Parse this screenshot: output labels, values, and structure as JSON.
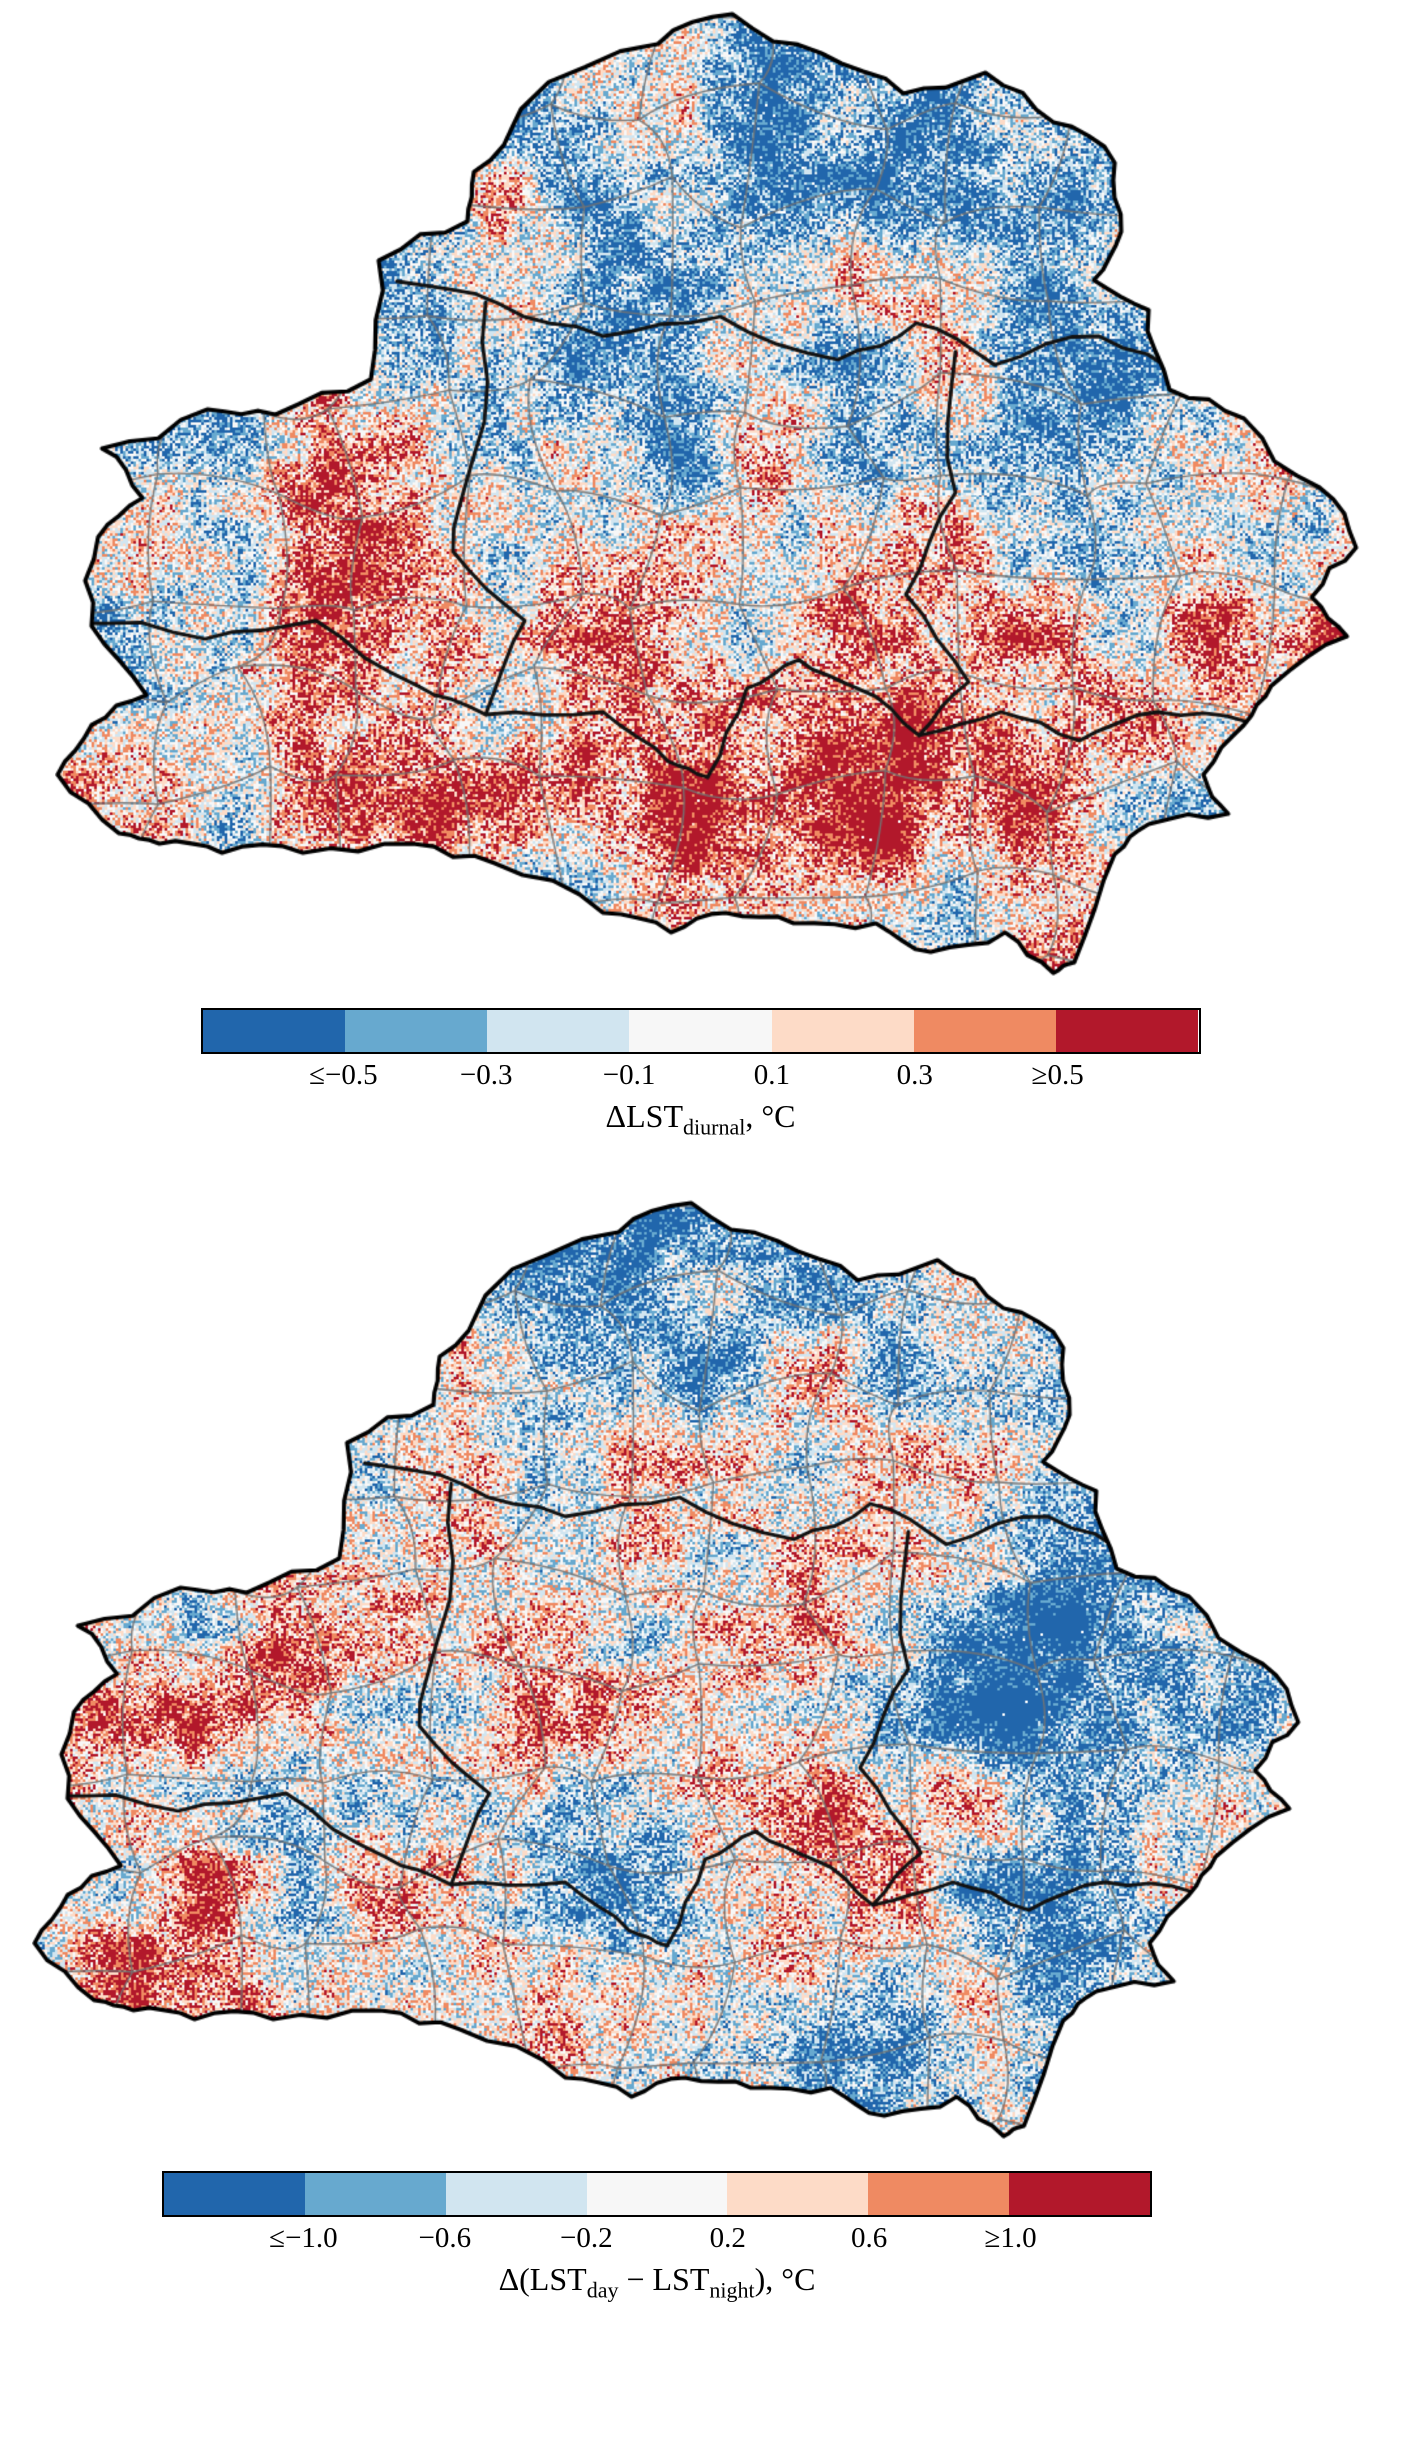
{
  "figure": {
    "panels": [
      {
        "id": "lst-diurnal",
        "colorbar": {
          "colors": [
            "#2166ac",
            "#67a9cf",
            "#d1e5f0",
            "#f7f7f7",
            "#fddbc7",
            "#ef8a62",
            "#b2182b"
          ],
          "tick_labels": [
            "≤−0.5",
            "−0.3",
            "−0.1",
            "0.1",
            "0.3",
            "≥0.5"
          ]
        },
        "caption": {
          "p1": "ΔLST",
          "s1": "diurnal",
          "p2": ", °C",
          "s2": "",
          "p3": ""
        }
      },
      {
        "id": "lst-day-minus-night",
        "colorbar": {
          "colors": [
            "#2166ac",
            "#67a9cf",
            "#d1e5f0",
            "#f7f7f7",
            "#fddbc7",
            "#ef8a62",
            "#b2182b"
          ],
          "tick_labels": [
            "≤−1.0",
            "−0.6",
            "−0.2",
            "0.2",
            "0.6",
            "≥1.0"
          ]
        },
        "caption": {
          "p1": "Δ(LST",
          "s1": "day",
          "p2": " − LST",
          "s2": "night",
          "p3": "), °C"
        }
      }
    ]
  }
}
